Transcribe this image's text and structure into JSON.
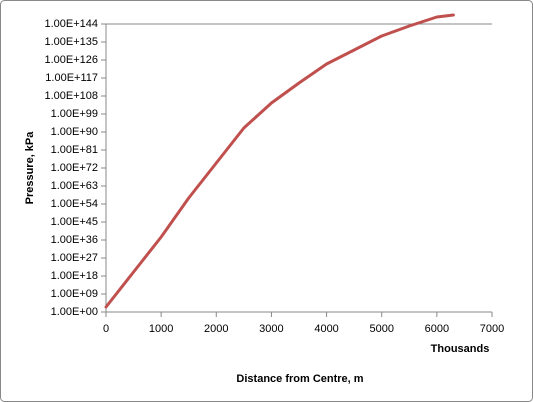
{
  "chart_data": {
    "type": "line",
    "x_label": "Distance  from Centre, m",
    "x_unit_label": "Thousands",
    "y_label": "Pressure, kPa",
    "log_y": true,
    "x": [
      0,
      500,
      1000,
      1500,
      2000,
      2500,
      3000,
      3500,
      4000,
      4500,
      5000,
      5500,
      6000,
      6300
    ],
    "series": [
      {
        "color": "#c0504d",
        "values": [
          316.0,
          1e+20,
          3.16e+37,
          1e+57,
          3.16e+74,
          1e+92,
          3.16e+104,
          3.16e+114,
          1e+124,
          1e+131,
          1e+138,
          1e+143,
          3.16e+147,
          3.16e+148
        ]
      }
    ],
    "xlim": [
      0,
      7000
    ],
    "xticks": [
      0,
      1000,
      2000,
      3000,
      4000,
      5000,
      6000,
      7000
    ],
    "ylim": [
      1,
      1e+144
    ],
    "yticks": [
      {
        "value": 1,
        "label": "1.00E+00"
      },
      {
        "value": 1000000000.0,
        "label": "1.00E+09"
      },
      {
        "value": 1e+18,
        "label": "1.00E+18"
      },
      {
        "value": 1e+27,
        "label": "1.00E+27"
      },
      {
        "value": 1e+36,
        "label": "1.00E+36"
      },
      {
        "value": 1e+45,
        "label": "1.00E+45"
      },
      {
        "value": 1e+54,
        "label": "1.00E+54"
      },
      {
        "value": 1e+63,
        "label": "1.00E+63"
      },
      {
        "value": 1e+72,
        "label": "1.00E+72"
      },
      {
        "value": 1e+81,
        "label": "1.00E+81"
      },
      {
        "value": 1e+90,
        "label": "1.00E+90"
      },
      {
        "value": 1e+99,
        "label": "1.00E+99"
      },
      {
        "value": 1e+108,
        "label": "1.00E+108"
      },
      {
        "value": 1e+117,
        "label": "1.00E+117"
      },
      {
        "value": 1e+126,
        "label": "1.00E+126"
      },
      {
        "value": 1e+135,
        "label": "1.00E+135"
      },
      {
        "value": 1e+144,
        "label": "1.00E+144"
      }
    ]
  }
}
